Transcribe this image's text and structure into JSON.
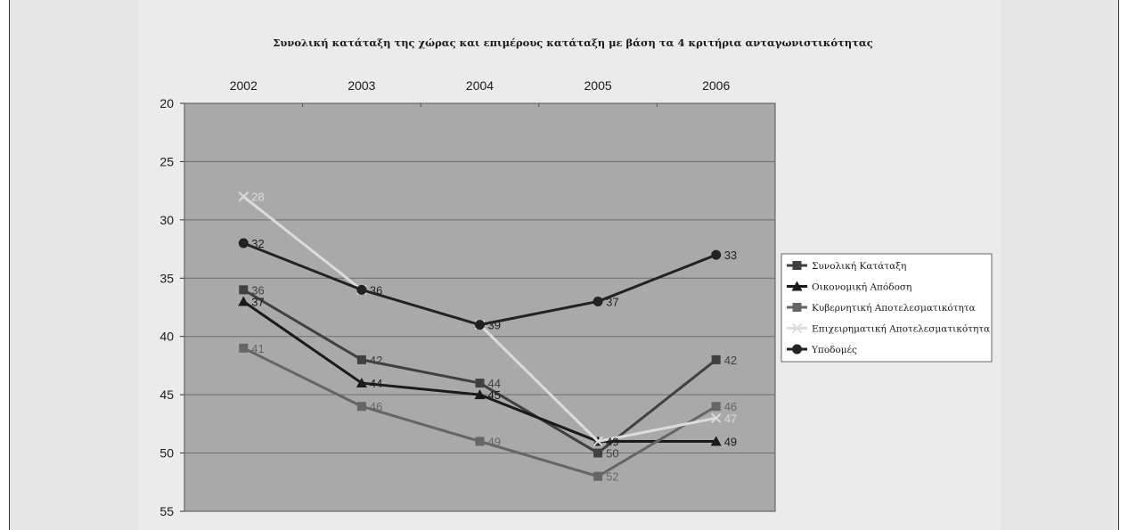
{
  "chart_data": {
    "type": "line",
    "title": "Συνολική κατάταξη της χώρας και επιμέρους κατάταξη με βάση τα 4 κριτήρια ανταγωνιστικότητας",
    "categories": [
      "2002",
      "2003",
      "2004",
      "2005",
      "2006"
    ],
    "ylim": [
      20,
      55
    ],
    "y_reversed": true,
    "y_ticks": [
      20,
      25,
      30,
      35,
      40,
      45,
      50,
      55
    ],
    "grid": true,
    "legend_position": "right",
    "series": [
      {
        "name": "Συνολική Κατάταξη",
        "values": [
          36,
          42,
          44,
          50,
          42
        ],
        "color": "#404040",
        "marker": "square",
        "labels": [
          "36",
          "42",
          "44",
          "50",
          "42"
        ]
      },
      {
        "name": "Οικονομική Απόδοση",
        "values": [
          37,
          44,
          45,
          49,
          49
        ],
        "color": "#1a1a1a",
        "marker": "triangle",
        "labels": [
          "37",
          "44",
          "45",
          "49",
          "49"
        ]
      },
      {
        "name": "Κυβερνητική Αποτελεσματικότητα",
        "values": [
          41,
          46,
          49,
          52,
          46
        ],
        "color": "#666666",
        "marker": "square",
        "labels": [
          "41",
          "46",
          "49",
          "52",
          "46"
        ]
      },
      {
        "name": "Επιχειρηματική Αποτελεσματικότητα",
        "values": [
          28,
          36,
          39,
          49,
          47
        ],
        "color": "#dcdcdc",
        "marker": "x",
        "labels": [
          "28",
          "",
          "",
          "",
          "47"
        ]
      },
      {
        "name": "Υποδομές",
        "values": [
          32,
          36,
          39,
          37,
          33
        ],
        "color": "#222222",
        "marker": "circle",
        "labels": [
          "32",
          "36",
          "39",
          "37",
          "33"
        ]
      }
    ]
  }
}
